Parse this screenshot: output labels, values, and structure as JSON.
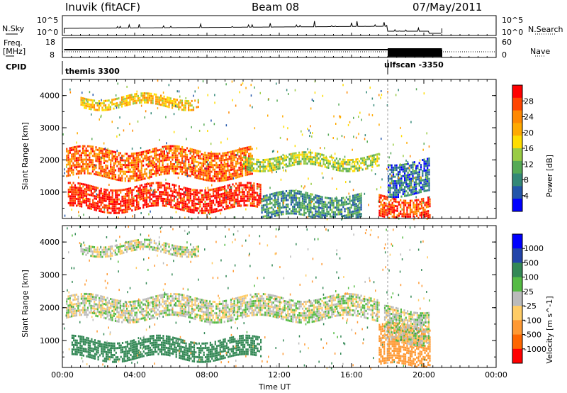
{
  "header": {
    "station": "Inuvik (fitACF)",
    "beam": "Beam 08",
    "date": "07/May/2011"
  },
  "left_labels": {
    "nsky": "N.Sky",
    "freq": "Freq.",
    "mhz": "[MHz]",
    "cpid": "CPID"
  },
  "right_labels": {
    "nsearch": "N.Search",
    "nave": "Nave"
  },
  "nsky_ticks": [
    "10^5",
    "10^0"
  ],
  "nsearch_ticks": [
    "10^5",
    "10^0"
  ],
  "freq_ticks": [
    "18",
    "8"
  ],
  "nave_ticks": [
    "60",
    "0"
  ],
  "cpid_modes": [
    {
      "label": "themis 3300",
      "start": "00:00",
      "end": "18:00"
    },
    {
      "label": "ulfscan -3350",
      "start": "18:00",
      "end": "21:00"
    }
  ],
  "chart_data": [
    {
      "type": "heatmap",
      "ylabel": "Slant Range [km]",
      "xlabel": "",
      "colorbar_label": "Power [dB]",
      "colorbar_ticks": [
        "28",
        "24",
        "20",
        "16",
        "12",
        "8",
        "4"
      ],
      "colorbar_colors": [
        "#ff0000",
        "#ff4400",
        "#ff8800",
        "#ffaa00",
        "#ffdd00",
        "#99cc44",
        "#55aa55",
        "#338877",
        "#2255aa",
        "#0000ff"
      ],
      "y_ticks": [
        "4000",
        "3000",
        "2000",
        "1000"
      ],
      "ylim": [
        180,
        4500
      ],
      "xlim": [
        "00:00",
        "24:00"
      ],
      "bands": [
        {
          "start": 0.2,
          "end": 10.5,
          "range_lo": 1500,
          "range_hi": 2400,
          "level": 24
        },
        {
          "start": 0.3,
          "end": 11.0,
          "range_lo": 500,
          "range_hi": 1250,
          "level": 28
        },
        {
          "start": 1.0,
          "end": 7.5,
          "range_lo": 3700,
          "range_hi": 4000,
          "level": 18
        },
        {
          "start": 10.0,
          "end": 17.5,
          "range_lo": 1800,
          "range_hi": 2200,
          "level": 14
        },
        {
          "start": 11.0,
          "end": 16.5,
          "range_lo": 250,
          "range_hi": 1000,
          "level": 8
        },
        {
          "start": 17.5,
          "end": 20.3,
          "range_lo": 250,
          "range_hi": 900,
          "level": 26
        },
        {
          "start": 18.0,
          "end": 20.3,
          "range_lo": 1000,
          "range_hi": 2000,
          "level": 6
        }
      ]
    },
    {
      "type": "heatmap",
      "ylabel": "Slant Range [km]",
      "xlabel": "Time UT",
      "colorbar_label": "Velocity [m s^-1]",
      "colorbar_ticks": [
        "1000",
        "500",
        "100",
        "25",
        "-25",
        "-100",
        "-500",
        "-1000"
      ],
      "colorbar_colors": [
        "#0000ff",
        "#2244aa",
        "#338855",
        "#55bb44",
        "#bbbbbb",
        "#ffcc66",
        "#ff9933",
        "#ff6600",
        "#ff0000"
      ],
      "y_ticks": [
        "4000",
        "3000",
        "2000",
        "1000"
      ],
      "ylim": [
        180,
        4500
      ],
      "xlim": [
        "00:00",
        "24:00"
      ],
      "x_ticks": [
        "00:00",
        "04:00",
        "08:00",
        "12:00",
        "16:00",
        "20:00",
        "00:00"
      ],
      "bands": [
        {
          "start": 0.2,
          "end": 17.5,
          "range_lo": 1700,
          "range_hi": 2400,
          "level": 0
        },
        {
          "start": 0.5,
          "end": 11.0,
          "range_lo": 500,
          "range_hi": 1100,
          "level": 150
        },
        {
          "start": 1.0,
          "end": 7.5,
          "range_lo": 3700,
          "range_hi": 4000,
          "level": 0
        },
        {
          "start": 17.5,
          "end": 20.3,
          "range_lo": 250,
          "range_hi": 1500,
          "level": -150
        },
        {
          "start": 17.8,
          "end": 20.3,
          "range_lo": 1000,
          "range_hi": 2000,
          "level": 0
        }
      ]
    }
  ]
}
